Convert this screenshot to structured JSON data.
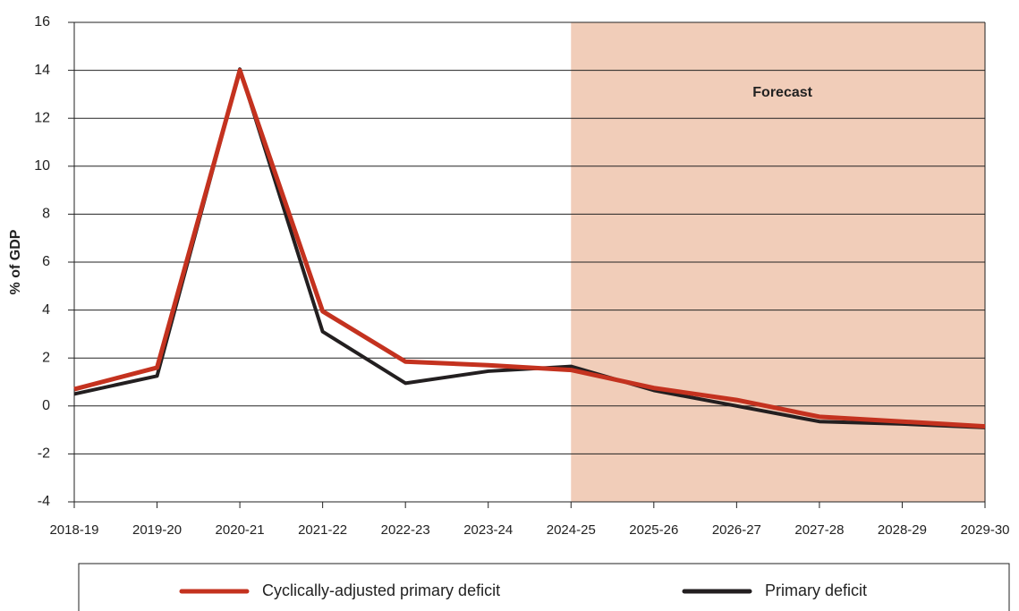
{
  "chart_data": {
    "type": "line",
    "y_label": "% of GDP",
    "categories": [
      "2018-19",
      "2019-20",
      "2020-21",
      "2021-22",
      "2022-23",
      "2023-24",
      "2024-25",
      "2025-26",
      "2026-27",
      "2027-28",
      "2028-29",
      "2029-30"
    ],
    "series": [
      {
        "name": "Cyclically-adjusted primary deficit",
        "color": "#c4321f",
        "values": [
          0.7,
          1.6,
          14.0,
          3.95,
          1.85,
          1.7,
          1.5,
          0.75,
          0.25,
          -0.45,
          -0.65,
          -0.85
        ]
      },
      {
        "name": "Primary deficit",
        "color": "#231f20",
        "values": [
          0.5,
          1.25,
          14.05,
          3.1,
          0.95,
          1.45,
          1.65,
          0.65,
          0.0,
          -0.65,
          -0.75,
          -0.9
        ]
      }
    ],
    "ylim": [
      -4,
      16
    ],
    "yticks": [
      -4,
      -2,
      0,
      2,
      4,
      6,
      8,
      10,
      12,
      14,
      16
    ],
    "grid": true,
    "annotation": {
      "text": "Forecast",
      "from": "2024-25",
      "color": "#f1cdb9"
    },
    "legend": "bottom"
  }
}
